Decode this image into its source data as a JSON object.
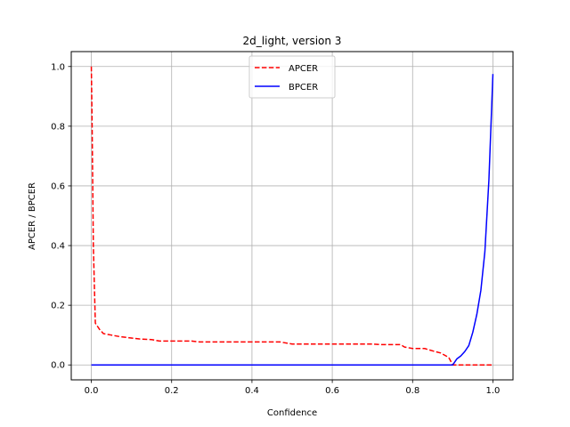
{
  "chart_data": {
    "type": "line",
    "title": "2d_light, version 3",
    "xlabel": "Confidence",
    "ylabel": "APCER / BPCER",
    "xlim": [
      -0.05,
      1.05
    ],
    "ylim": [
      -0.05,
      1.05
    ],
    "xticks": [
      0.0,
      0.2,
      0.4,
      0.6,
      0.8,
      1.0
    ],
    "xtick_labels": [
      "0.0",
      "0.2",
      "0.4",
      "0.6",
      "0.8",
      "1.0"
    ],
    "yticks": [
      0.0,
      0.2,
      0.4,
      0.6,
      0.8,
      1.0
    ],
    "ytick_labels": [
      "0.0",
      "0.2",
      "0.4",
      "0.6",
      "0.8",
      "1.0"
    ],
    "grid": true,
    "legend_position": "upper center",
    "series": [
      {
        "name": "APCER",
        "color": "#ff0000",
        "style": "dashed",
        "x": [
          0.0,
          0.002,
          0.005,
          0.01,
          0.02,
          0.03,
          0.05,
          0.07,
          0.1,
          0.12,
          0.15,
          0.17,
          0.2,
          0.25,
          0.27,
          0.3,
          0.35,
          0.4,
          0.45,
          0.47,
          0.5,
          0.55,
          0.6,
          0.65,
          0.7,
          0.72,
          0.75,
          0.77,
          0.78,
          0.8,
          0.83,
          0.85,
          0.87,
          0.89,
          0.9,
          0.92,
          0.95,
          0.97,
          1.0
        ],
        "y": [
          1.0,
          0.8,
          0.4,
          0.14,
          0.12,
          0.105,
          0.1,
          0.095,
          0.09,
          0.087,
          0.085,
          0.08,
          0.08,
          0.08,
          0.077,
          0.077,
          0.077,
          0.077,
          0.077,
          0.077,
          0.07,
          0.07,
          0.07,
          0.07,
          0.07,
          0.068,
          0.068,
          0.068,
          0.06,
          0.055,
          0.055,
          0.047,
          0.04,
          0.025,
          0.0,
          0.0,
          0.0,
          0.0,
          0.0
        ]
      },
      {
        "name": "BPCER",
        "color": "#0000ff",
        "style": "solid",
        "x": [
          0.0,
          0.2,
          0.4,
          0.6,
          0.8,
          0.9,
          0.91,
          0.92,
          0.93,
          0.94,
          0.95,
          0.96,
          0.97,
          0.98,
          0.99,
          1.0
        ],
        "y": [
          0.0,
          0.0,
          0.0,
          0.0,
          0.0,
          0.0,
          0.02,
          0.03,
          0.045,
          0.065,
          0.11,
          0.17,
          0.25,
          0.38,
          0.62,
          0.975
        ]
      }
    ]
  }
}
